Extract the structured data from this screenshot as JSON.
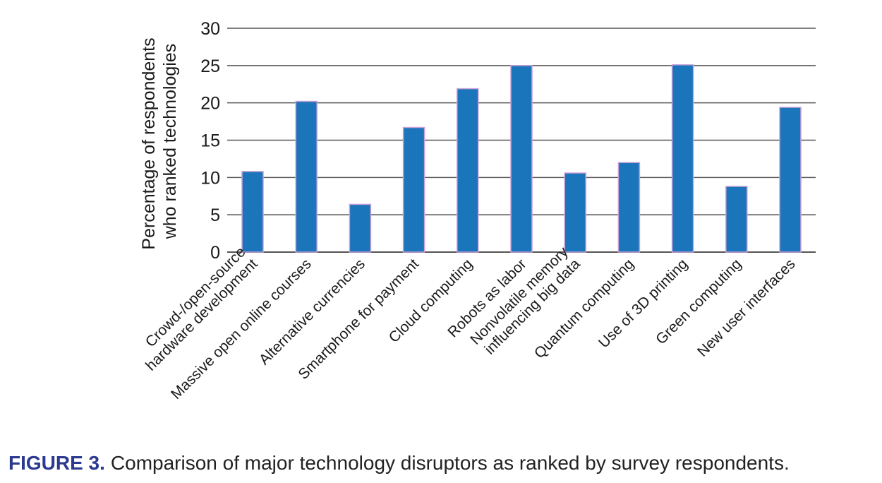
{
  "colors": {
    "bar_fill": "#1b75bb",
    "bar_edge": "#c9a0d8",
    "grid": "#555555",
    "caption_label": "#2b3990"
  },
  "caption": {
    "label": "FIGURE 3.",
    "text": "Comparison of major technology disruptors as ranked by survey respondents."
  },
  "chart_data": {
    "type": "bar",
    "ylabel_lines": [
      "Percentage of respondents",
      "who ranked technologies"
    ],
    "ylim": [
      0,
      30
    ],
    "yticks": [
      0,
      5,
      10,
      15,
      20,
      25,
      30
    ],
    "grid": true,
    "categories": [
      [
        "Crowd-/open-source",
        "hardware development"
      ],
      [
        "Massive open online courses"
      ],
      [
        "Alternative currencies"
      ],
      [
        "Smartphone for payment"
      ],
      [
        "Cloud computing"
      ],
      [
        "Robots as labor"
      ],
      [
        "Nonvolatile memory",
        "influencing big data"
      ],
      [
        "Quantum computing"
      ],
      [
        "Use of 3D printing"
      ],
      [
        "Green computing"
      ],
      [
        "New user interfaces"
      ]
    ],
    "values": [
      10.8,
      20.2,
      6.4,
      16.7,
      21.9,
      25.0,
      10.6,
      12.0,
      25.1,
      8.8,
      19.4
    ]
  }
}
